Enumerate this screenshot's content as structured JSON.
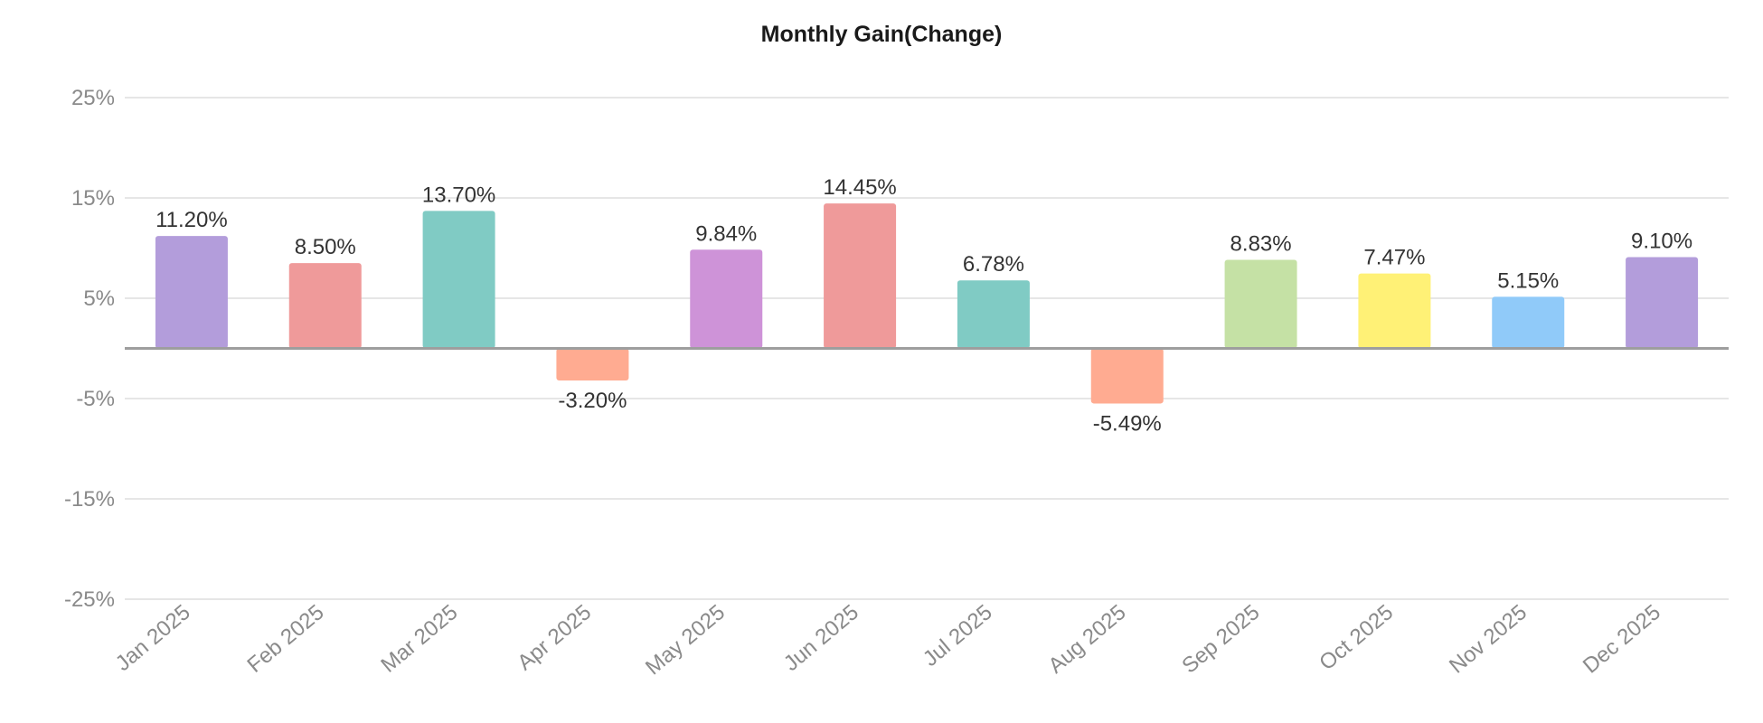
{
  "chart_data": {
    "type": "bar",
    "title": "Monthly Gain(Change)",
    "xlabel": "",
    "ylabel": "",
    "ylim": [
      -25,
      25
    ],
    "y_ticks": [
      "25%",
      "15%",
      "5%",
      "-5%",
      "-15%",
      "-25%"
    ],
    "y_tick_values": [
      25,
      15,
      5,
      -5,
      -15,
      -25
    ],
    "grid": true,
    "legend": "none",
    "categories": [
      "Jan 2025",
      "Feb 2025",
      "Mar 2025",
      "Apr 2025",
      "May 2025",
      "Jun 2025",
      "Jul 2025",
      "Aug 2025",
      "Sep 2025",
      "Oct 2025",
      "Nov 2025",
      "Dec 2025"
    ],
    "values": [
      11.2,
      8.5,
      13.7,
      -3.2,
      9.84,
      14.45,
      6.78,
      -5.49,
      8.83,
      7.47,
      5.15,
      9.1
    ],
    "value_labels": [
      "11.20%",
      "8.50%",
      "13.70%",
      "-3.20%",
      "9.84%",
      "14.45%",
      "6.78%",
      "-5.49%",
      "8.83%",
      "7.47%",
      "5.15%",
      "9.10%"
    ],
    "colors": [
      "#b39ddb",
      "#ef9a9a",
      "#80cbc4",
      "#ffab91",
      "#ce93d8",
      "#ef9a9a",
      "#80cbc4",
      "#ffab91",
      "#c5e1a5",
      "#fff176",
      "#90caf9",
      "#b39ddb"
    ]
  }
}
